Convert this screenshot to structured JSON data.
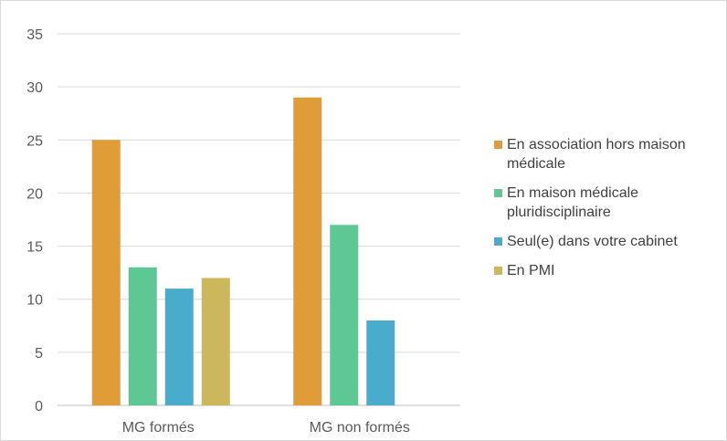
{
  "chart_data": {
    "type": "bar",
    "title": "",
    "xlabel": "",
    "ylabel": "",
    "categories": [
      "MG formés",
      "MG non formés"
    ],
    "ylim": [
      0,
      35
    ],
    "yticks": [
      0,
      5,
      10,
      15,
      20,
      25,
      30,
      35
    ],
    "grid": true,
    "legend_position": "right",
    "series": [
      {
        "name": "En association hors maison médicale",
        "values": [
          25,
          29
        ],
        "color": "#E09C37"
      },
      {
        "name": "En maison médicale pluridisciplinaire",
        "values": [
          13,
          17
        ],
        "color": "#5DC894"
      },
      {
        "name": "Seul(e) dans votre cabinet",
        "values": [
          11,
          8
        ],
        "color": "#4AACCD"
      },
      {
        "name": "En PMI",
        "values": [
          12,
          null
        ],
        "color": "#CCB85A"
      }
    ]
  }
}
